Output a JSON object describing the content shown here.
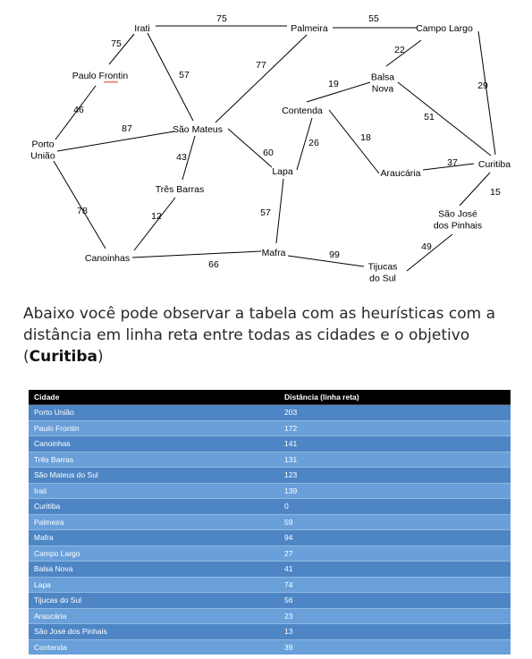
{
  "graph": {
    "nodes": [
      {
        "id": "irati",
        "lines": [
          "Irati"
        ]
      },
      {
        "id": "palmeira",
        "lines": [
          "Palmeira"
        ]
      },
      {
        "id": "campo-largo",
        "lines": [
          "Campo Largo"
        ]
      },
      {
        "id": "paulo-frontin",
        "lines": [
          "Paulo Frontin"
        ]
      },
      {
        "id": "balsa-nova",
        "lines": [
          "Balsa",
          "Nova"
        ]
      },
      {
        "id": "contenda",
        "lines": [
          "Contenda"
        ]
      },
      {
        "id": "porto-uniao",
        "lines": [
          "Porto",
          "União"
        ]
      },
      {
        "id": "sao-mateus",
        "lines": [
          "São Mateus"
        ]
      },
      {
        "id": "lapa",
        "lines": [
          "Lapa"
        ]
      },
      {
        "id": "tres-barras",
        "lines": [
          "Três Barras"
        ]
      },
      {
        "id": "araucaria",
        "lines": [
          "Araucária"
        ]
      },
      {
        "id": "curitiba",
        "lines": [
          "Curitiba"
        ]
      },
      {
        "id": "sao-jose",
        "lines": [
          "São José",
          "dos Pinhais"
        ]
      },
      {
        "id": "canoinhas",
        "lines": [
          "Canoinhas"
        ]
      },
      {
        "id": "mafra",
        "lines": [
          "Mafra"
        ]
      },
      {
        "id": "tijucas",
        "lines": [
          "Tijucas",
          "do Sul"
        ]
      }
    ],
    "edges": [
      {
        "from": "irati",
        "to": "palmeira",
        "weight": "75"
      },
      {
        "from": "palmeira",
        "to": "campo-largo",
        "weight": "55"
      },
      {
        "from": "irati",
        "to": "paulo-frontin",
        "weight": "75"
      },
      {
        "from": "irati",
        "to": "sao-mateus",
        "weight": "57"
      },
      {
        "from": "palmeira",
        "to": "sao-mateus",
        "weight": "77"
      },
      {
        "from": "campo-largo",
        "to": "balsa-nova",
        "weight": "22"
      },
      {
        "from": "campo-largo",
        "to": "curitiba",
        "weight": "29"
      },
      {
        "from": "balsa-nova",
        "to": "contenda",
        "weight": "19"
      },
      {
        "from": "balsa-nova",
        "to": "curitiba",
        "weight": "51"
      },
      {
        "from": "paulo-frontin",
        "to": "porto-uniao",
        "weight": "46"
      },
      {
        "from": "porto-uniao",
        "to": "sao-mateus",
        "weight": "87"
      },
      {
        "from": "porto-uniao",
        "to": "canoinhas",
        "weight": "78"
      },
      {
        "from": "sao-mateus",
        "to": "tres-barras",
        "weight": "43"
      },
      {
        "from": "sao-mateus",
        "to": "lapa",
        "weight": "60"
      },
      {
        "from": "contenda",
        "to": "lapa",
        "weight": "26"
      },
      {
        "from": "contenda",
        "to": "araucaria",
        "weight": "18"
      },
      {
        "from": "araucaria",
        "to": "curitiba",
        "weight": "37"
      },
      {
        "from": "curitiba",
        "to": "sao-jose",
        "weight": "15"
      },
      {
        "from": "tres-barras",
        "to": "canoinhas",
        "weight": "12"
      },
      {
        "from": "lapa",
        "to": "mafra",
        "weight": "57"
      },
      {
        "from": "canoinhas",
        "to": "mafra",
        "weight": "66"
      },
      {
        "from": "mafra",
        "to": "tijucas",
        "weight": "99"
      },
      {
        "from": "tijucas",
        "to": "sao-jose",
        "weight": "49"
      }
    ]
  },
  "paragraph": {
    "text_before": "Abaixo você pode observar a tabela com as heurísticas com a distância em linha reta entre todas as cidades e o objetivo (",
    "goal": "Curitiba",
    "text_after": ")"
  },
  "table": {
    "headers": {
      "city": "Cidade",
      "distance": "Distância (linha reta)"
    },
    "rows": [
      {
        "city": "Porto União",
        "distance": "203"
      },
      {
        "city": "Paulo Frontin",
        "distance": "172"
      },
      {
        "city": "Canoinhas",
        "distance": "141"
      },
      {
        "city": "Três Barras",
        "distance": "131"
      },
      {
        "city": "São Mateus do Sul",
        "distance": "123"
      },
      {
        "city": "Irati",
        "distance": "139"
      },
      {
        "city": "Curitiba",
        "distance": "0"
      },
      {
        "city": "Palmeira",
        "distance": "59"
      },
      {
        "city": "Mafra",
        "distance": "94"
      },
      {
        "city": "Campo Largo",
        "distance": "27"
      },
      {
        "city": "Balsa Nova",
        "distance": "41"
      },
      {
        "city": "Lapa",
        "distance": "74"
      },
      {
        "city": "Tijucas do Sul",
        "distance": "56"
      },
      {
        "city": "Araucária",
        "distance": "23"
      },
      {
        "city": "São José dos Pinhais",
        "distance": "13"
      },
      {
        "city": "Contenda",
        "distance": "39"
      }
    ]
  }
}
